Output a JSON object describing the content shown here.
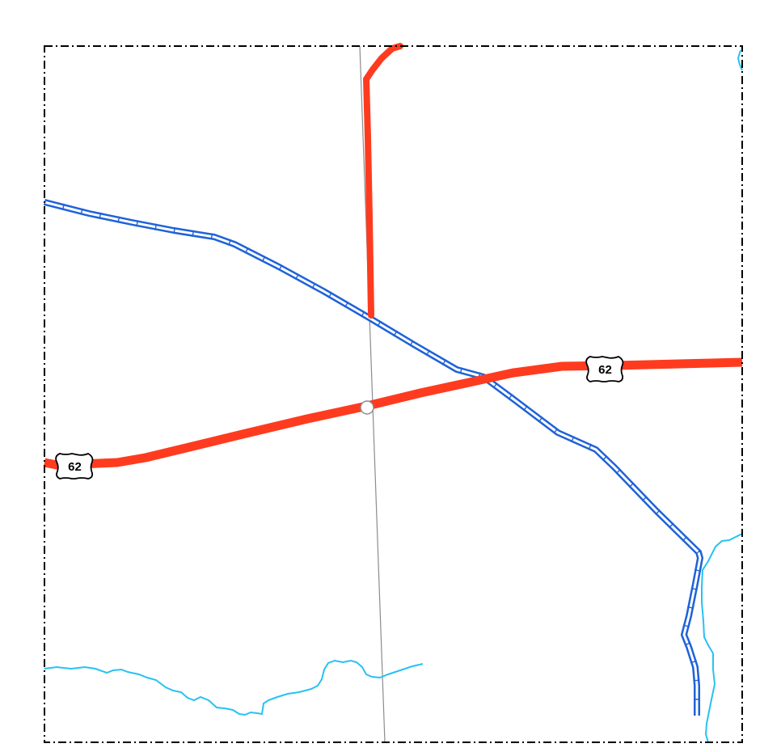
{
  "map": {
    "route_shields": [
      {
        "id": "west",
        "label": "62"
      },
      {
        "id": "east",
        "label": "62"
      }
    ],
    "colors": {
      "background": "#ffffff",
      "highway": "#ff3b1f",
      "canal_outer": "#1e62d8",
      "canal_inner": "#ffffff",
      "stream": "#27c2f2",
      "boundary": "#000000",
      "section_line": "#8c8c8c",
      "shield_fill": "#ffffff",
      "shield_stroke": "#000000"
    },
    "features": {
      "highway_name": "62",
      "has_canal": true,
      "has_streams": true,
      "has_section_line": true,
      "has_junction_marker": true,
      "border_style": "dash-dot"
    }
  }
}
